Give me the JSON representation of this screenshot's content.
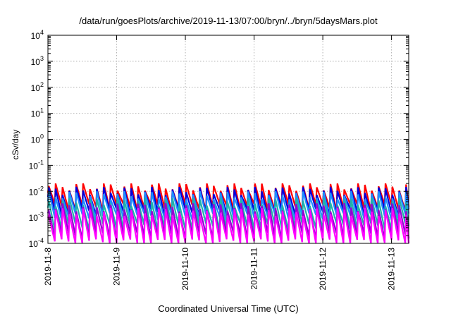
{
  "chart_data": {
    "type": "line",
    "title": "/data/run/goesPlots/archive/2019-11-13/07:00/bryn/../bryn/5daysMars.plot",
    "xlabel": "Coordinated Universal Time (UTC)",
    "ylabel": "cSv/day",
    "y_scale": "log",
    "ylim": [
      0.0001,
      10000
    ],
    "xlim": [
      "2019-11-08T00:00",
      "2019-11-13T06:00"
    ],
    "grid": true,
    "x_ticks": [
      "2019-11-8",
      "2019-11-9",
      "2019-11-10",
      "2019-11-11",
      "2019-11-12",
      "2019-11-13"
    ],
    "y_ticks": [
      {
        "base": "10",
        "exp": "-4"
      },
      {
        "base": "10",
        "exp": "-3"
      },
      {
        "base": "10",
        "exp": "-2"
      },
      {
        "base": "10",
        "exp": "-1"
      },
      {
        "base": "10",
        "exp": "0"
      },
      {
        "base": "10",
        "exp": "1"
      },
      {
        "base": "10",
        "exp": "2"
      },
      {
        "base": "10",
        "exp": "3"
      },
      {
        "base": "10",
        "exp": "4"
      }
    ],
    "sawtooth_period_hours": 2.4,
    "series": [
      {
        "color": "#ff0000",
        "peak": 0.016,
        "trough": 0.0025
      },
      {
        "color": "#0000dd",
        "peak": 0.011,
        "trough": 0.0016
      },
      {
        "color": "#1e90ff",
        "peak": 0.0075,
        "trough": 0.0011
      },
      {
        "color": "#20b2aa",
        "peak": 0.0042,
        "trough": 0.00045
      },
      {
        "color": "#9400d3",
        "peak": 0.0026,
        "trough": 0.0002
      },
      {
        "color": "#ff00ff",
        "peak": 0.0017,
        "trough": 0.00011
      }
    ]
  }
}
